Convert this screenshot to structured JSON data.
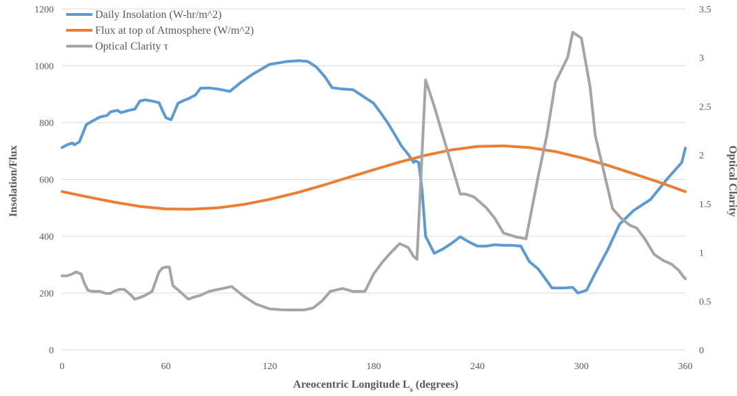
{
  "chart_data": {
    "type": "line",
    "title": "",
    "xlabel": "Areocentric Longitude L",
    "xlabel_subscript": "s",
    "xlabel_suffix": " (degrees)",
    "ylabel_left": "Insolation/Flux",
    "ylabel_right": "Optical Clarity",
    "xlim": [
      0,
      360
    ],
    "ylim_left": [
      0,
      1200
    ],
    "ylim_right": [
      0,
      3.5
    ],
    "x_ticks": [
      0,
      60,
      120,
      180,
      240,
      300,
      360
    ],
    "y_left_ticks": [
      0,
      200,
      400,
      600,
      800,
      1000,
      1200
    ],
    "y_right_ticks": [
      "0",
      "0.5",
      "1",
      "1.5",
      "2",
      "2.5",
      "3",
      "3.5"
    ],
    "y_right_tick_values": [
      0,
      0.5,
      1,
      1.5,
      2,
      2.5,
      3,
      3.5
    ],
    "grid": "horizontal",
    "legend_position": "top-left",
    "series": [
      {
        "name": "Daily Insolation (W-hr/m^2)",
        "axis": "left",
        "color": "#5B9BD5",
        "x": [
          0,
          3,
          6,
          7,
          10,
          14,
          18,
          22,
          26,
          28,
          32,
          34,
          38,
          40,
          42,
          45,
          48,
          52,
          56,
          58,
          60,
          63,
          67,
          70,
          73,
          77,
          80,
          85,
          90,
          97,
          103,
          110,
          120,
          130,
          137,
          142,
          147,
          152,
          156,
          162,
          168,
          175,
          180,
          184,
          188,
          192,
          196,
          200,
          203,
          204,
          206,
          208,
          210,
          215,
          220,
          225,
          230,
          235,
          240,
          245,
          250,
          255,
          260,
          265,
          270,
          275,
          283,
          290,
          295,
          298,
          303,
          308,
          315,
          322,
          330,
          340,
          350,
          358,
          360
        ],
        "values": [
          712,
          722,
          728,
          722,
          732,
          793,
          807,
          820,
          825,
          838,
          843,
          835,
          842,
          845,
          847,
          876,
          880,
          876,
          870,
          843,
          817,
          810,
          868,
          877,
          884,
          897,
          921,
          922,
          918,
          910,
          940,
          970,
          1005,
          1015,
          1018,
          1015,
          995,
          960,
          923,
          918,
          916,
          888,
          868,
          835,
          800,
          760,
          718,
          688,
          660,
          665,
          660,
          560,
          400,
          340,
          355,
          375,
          398,
          380,
          365,
          365,
          370,
          368,
          368,
          365,
          310,
          285,
          218,
          218,
          220,
          200,
          210,
          270,
          350,
          442,
          490,
          530,
          605,
          660,
          710
        ]
      },
      {
        "name": "Flux at top of Atmosphere (W/m^2)",
        "axis": "left",
        "color": "#ED7D31",
        "x": [
          0,
          15,
          30,
          45,
          60,
          75,
          90,
          105,
          120,
          135,
          150,
          165,
          180,
          195,
          210,
          225,
          240,
          255,
          270,
          285,
          300,
          315,
          330,
          345,
          360
        ],
        "values": [
          557,
          538,
          520,
          505,
          496,
          495,
          500,
          512,
          530,
          552,
          578,
          606,
          634,
          661,
          685,
          704,
          716,
          718,
          712,
          698,
          676,
          650,
          620,
          590,
          557
        ]
      },
      {
        "name": "Optical Clarity τ",
        "axis": "right",
        "color": "#A5A5A5",
        "x": [
          0,
          3,
          6,
          8,
          11,
          13,
          15,
          18,
          22,
          25,
          28,
          30,
          33,
          36,
          40,
          42,
          47,
          52,
          56,
          58,
          60,
          62,
          64,
          68,
          73,
          76,
          80,
          85,
          90,
          98,
          105,
          112,
          120,
          128,
          135,
          140,
          145,
          150,
          155,
          162,
          168,
          175,
          180,
          185,
          190,
          195,
          200,
          203,
          205,
          210,
          215,
          220,
          225,
          230,
          233,
          238,
          245,
          250,
          255,
          262,
          268,
          275,
          280,
          285,
          287,
          292,
          295,
          300,
          305,
          308,
          312,
          318,
          323,
          328,
          332,
          337,
          342,
          347,
          352,
          356,
          359,
          360
        ],
        "values": [
          0.76,
          0.76,
          0.78,
          0.8,
          0.78,
          0.68,
          0.61,
          0.6,
          0.6,
          0.58,
          0.58,
          0.6,
          0.62,
          0.62,
          0.56,
          0.52,
          0.55,
          0.6,
          0.8,
          0.84,
          0.85,
          0.85,
          0.66,
          0.6,
          0.52,
          0.54,
          0.56,
          0.6,
          0.62,
          0.65,
          0.55,
          0.47,
          0.42,
          0.41,
          0.41,
          0.41,
          0.43,
          0.5,
          0.6,
          0.63,
          0.6,
          0.6,
          0.78,
          0.9,
          1.0,
          1.09,
          1.05,
          0.96,
          0.93,
          2.77,
          2.5,
          2.2,
          1.9,
          1.6,
          1.6,
          1.57,
          1.46,
          1.35,
          1.2,
          1.16,
          1.14,
          1.78,
          2.2,
          2.75,
          2.82,
          3.0,
          3.26,
          3.2,
          2.7,
          2.2,
          1.9,
          1.45,
          1.35,
          1.28,
          1.25,
          1.13,
          0.98,
          0.92,
          0.88,
          0.82,
          0.75,
          0.73
        ]
      }
    ]
  }
}
